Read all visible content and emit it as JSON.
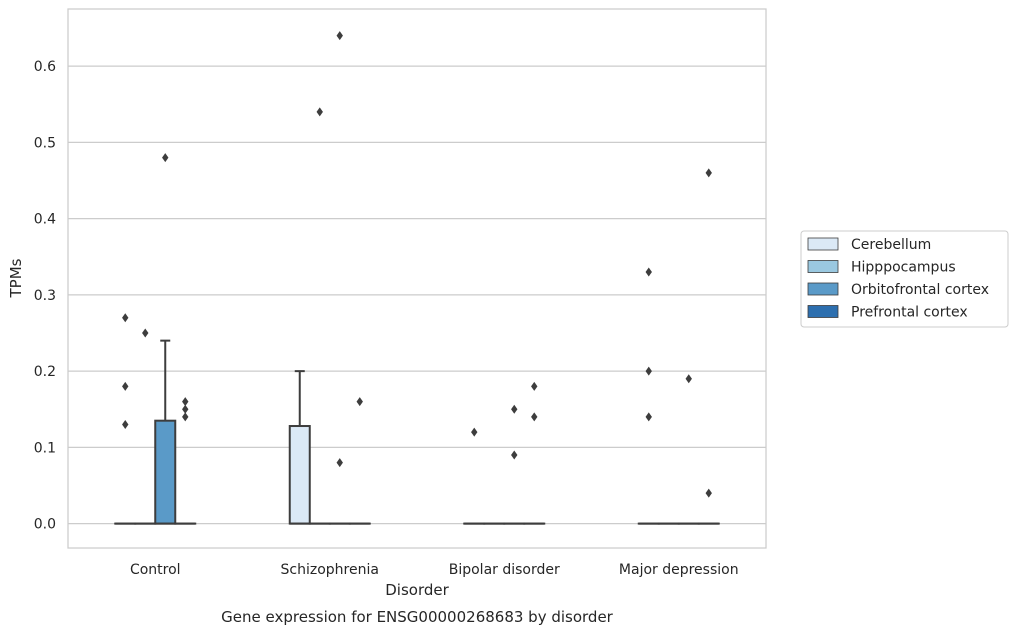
{
  "chart_data": {
    "type": "box",
    "xlabel": "Disorder",
    "ylabel": "TPMs",
    "caption": "Gene expression for ENSG00000268683 by disorder",
    "ylim": [
      -0.032,
      0.675
    ],
    "yticks": [
      0.0,
      0.1,
      0.2,
      0.3,
      0.4,
      0.5,
      0.6
    ],
    "ytick_labels": [
      "0.0",
      "0.1",
      "0.2",
      "0.3",
      "0.4",
      "0.5",
      "0.6"
    ],
    "grid": "horizontal",
    "legend_position": "right-center",
    "categories": [
      "Control",
      "Schizophrenia",
      "Bipolar disorder",
      "Major depression"
    ],
    "series": [
      {
        "name": "Cerebellum",
        "color": "#dbe9f6",
        "boxes": [
          {
            "q1": 0,
            "median": 0,
            "q3": 0,
            "whisker_low": 0,
            "whisker_high": 0,
            "outliers": [
              0.13,
              0.18,
              0.27
            ]
          },
          {
            "q1": 0,
            "median": 0,
            "q3": 0.128,
            "whisker_low": 0,
            "whisker_high": 0.2,
            "outliers": []
          },
          {
            "q1": 0,
            "median": 0,
            "q3": 0,
            "whisker_low": 0,
            "whisker_high": 0,
            "outliers": [
              0.12
            ]
          },
          {
            "q1": 0,
            "median": 0,
            "q3": 0,
            "whisker_low": 0,
            "whisker_high": 0,
            "outliers": [
              0.14,
              0.2,
              0.33
            ]
          }
        ]
      },
      {
        "name": "Hipppocampus",
        "color": "#9ac8e0",
        "boxes": [
          {
            "q1": 0,
            "median": 0,
            "q3": 0,
            "whisker_low": 0,
            "whisker_high": 0,
            "outliers": [
              0.25
            ]
          },
          {
            "q1": 0,
            "median": 0,
            "q3": 0,
            "whisker_low": 0,
            "whisker_high": 0,
            "outliers": [
              0.54
            ]
          },
          {
            "q1": 0,
            "median": 0,
            "q3": 0,
            "whisker_low": 0,
            "whisker_high": 0,
            "outliers": []
          },
          {
            "q1": 0,
            "median": 0,
            "q3": 0,
            "whisker_low": 0,
            "whisker_high": 0,
            "outliers": []
          }
        ]
      },
      {
        "name": "Orbitofrontal cortex",
        "color": "#5a9ac8",
        "boxes": [
          {
            "q1": 0,
            "median": 0,
            "q3": 0.135,
            "whisker_low": 0,
            "whisker_high": 0.24,
            "outliers": [
              0.48
            ]
          },
          {
            "q1": 0,
            "median": 0,
            "q3": 0,
            "whisker_low": 0,
            "whisker_high": 0,
            "outliers": [
              0.08,
              0.64
            ]
          },
          {
            "q1": 0,
            "median": 0,
            "q3": 0,
            "whisker_low": 0,
            "whisker_high": 0,
            "outliers": [
              0.09,
              0.15
            ]
          },
          {
            "q1": 0,
            "median": 0,
            "q3": 0,
            "whisker_low": 0,
            "whisker_high": 0,
            "outliers": [
              0.19
            ]
          }
        ]
      },
      {
        "name": "Prefrontal cortex",
        "color": "#2d6faf",
        "boxes": [
          {
            "q1": 0,
            "median": 0,
            "q3": 0,
            "whisker_low": 0,
            "whisker_high": 0,
            "outliers": [
              0.14,
              0.15,
              0.16
            ]
          },
          {
            "q1": 0,
            "median": 0,
            "q3": 0,
            "whisker_low": 0,
            "whisker_high": 0,
            "outliers": [
              0.16
            ]
          },
          {
            "q1": 0,
            "median": 0,
            "q3": 0,
            "whisker_low": 0,
            "whisker_high": 0,
            "outliers": [
              0.14,
              0.18
            ]
          },
          {
            "q1": 0,
            "median": 0,
            "q3": 0,
            "whisker_low": 0,
            "whisker_high": 0,
            "outliers": [
              0.04,
              0.46
            ]
          }
        ]
      }
    ]
  }
}
